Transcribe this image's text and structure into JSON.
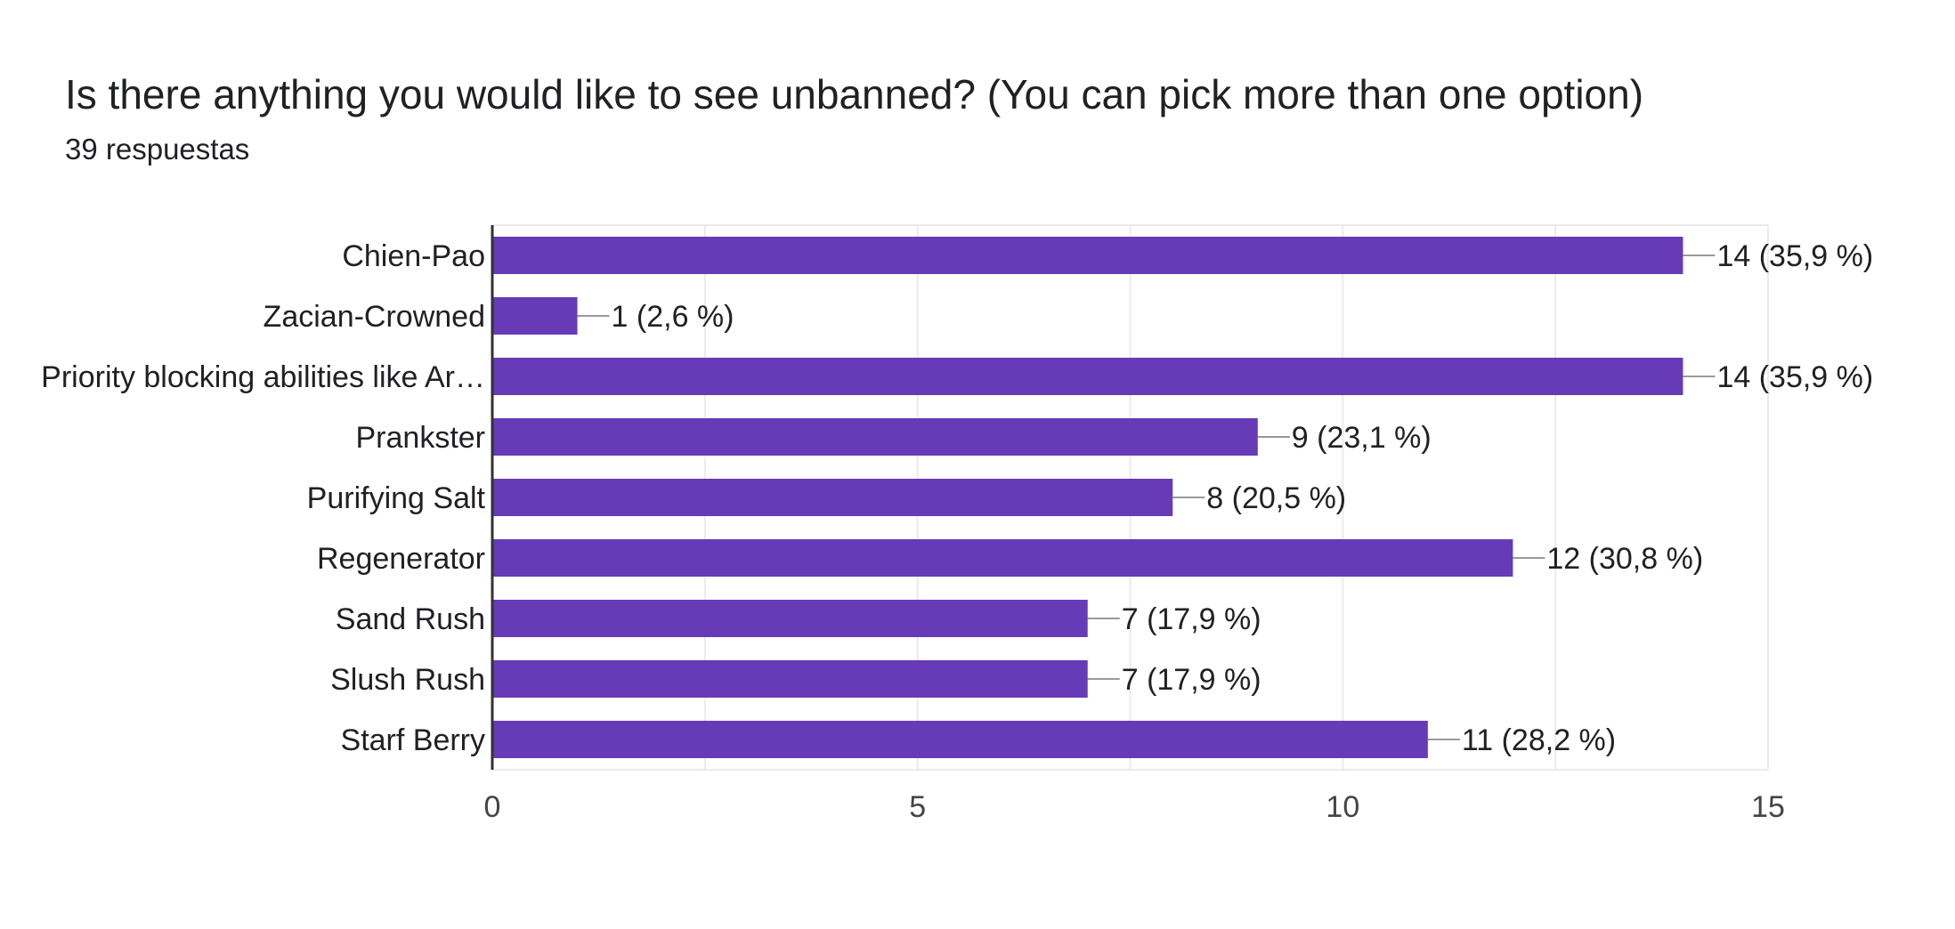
{
  "header": {
    "title": "Is there anything you would like to see unbanned?  (You can pick more than one option)",
    "subtitle": "39 respuestas"
  },
  "chart_data": {
    "type": "bar",
    "orientation": "horizontal",
    "categories": [
      "Chien-Pao",
      "Zacian-Crowned",
      "Priority blocking abilities like Ar…",
      "Prankster",
      "Purifying Salt",
      "Regenerator",
      "Sand Rush",
      "Slush Rush",
      "Starf Berry"
    ],
    "values": [
      14,
      1,
      14,
      9,
      8,
      12,
      7,
      7,
      11
    ],
    "value_labels": [
      "14 (35,9 %)",
      "1 (2,6 %)",
      "14 (35,9 %)",
      "9 (23,1 %)",
      "8 (20,5 %)",
      "12 (30,8 %)",
      "7 (17,9 %)",
      "7 (17,9 %)",
      "11 (28,2 %)"
    ],
    "xlim": [
      0,
      15
    ],
    "xticks": [
      "0",
      "5",
      "10",
      "15"
    ],
    "grid": true,
    "legend": "none",
    "bar_color": "#673ab7",
    "leader_color": "#999999",
    "axis_color": "#333333",
    "grid_color": "#ebebeb"
  }
}
